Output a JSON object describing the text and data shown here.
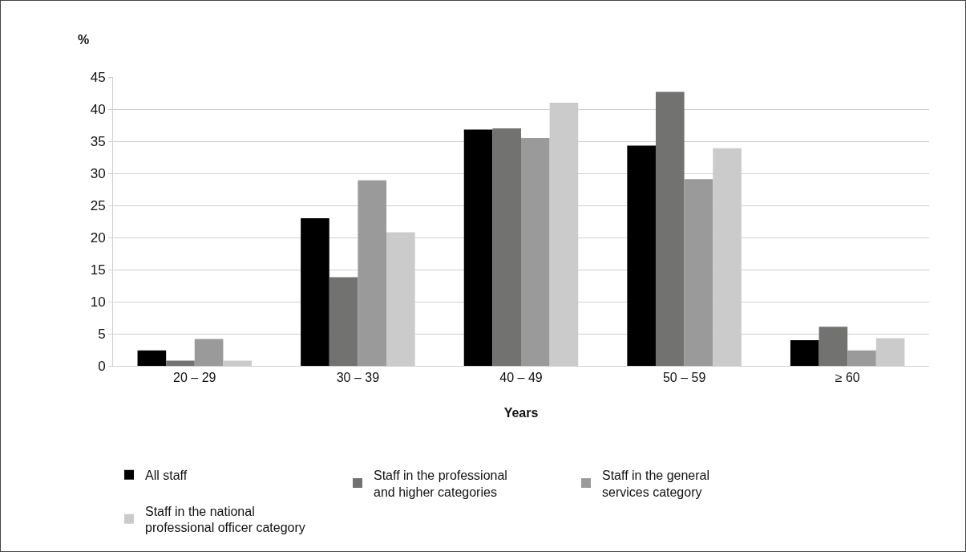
{
  "chart_data": {
    "type": "bar",
    "xlabel": "Years",
    "ylabel": "%",
    "categories": [
      "20 – 29",
      "30 – 39",
      "40 – 49",
      "50 – 59",
      "≥ 60"
    ],
    "series": [
      {
        "name": "All staff",
        "color": "#000000",
        "values": [
          2.4,
          23,
          36.8,
          34.3,
          4
        ]
      },
      {
        "name": "Staff in the professional\nand higher categories",
        "color": "#727270",
        "values": [
          0.8,
          13.8,
          37,
          42.7,
          6.1
        ]
      },
      {
        "name": "Staff in the general\nservices category",
        "color": "#9a9a9a",
        "values": [
          4.2,
          28.9,
          35.5,
          29.1,
          2.4
        ]
      },
      {
        "name": "Staff in the national\nprofessional officer category",
        "color": "#cbcbcb",
        "values": [
          0.8,
          20.8,
          41,
          33.9,
          4.3
        ]
      }
    ],
    "ylim": [
      0,
      45
    ],
    "yticks": [
      0,
      5,
      10,
      15,
      20,
      25,
      30,
      35,
      40,
      45
    ],
    "grid": "y",
    "legend": "bottom"
  }
}
